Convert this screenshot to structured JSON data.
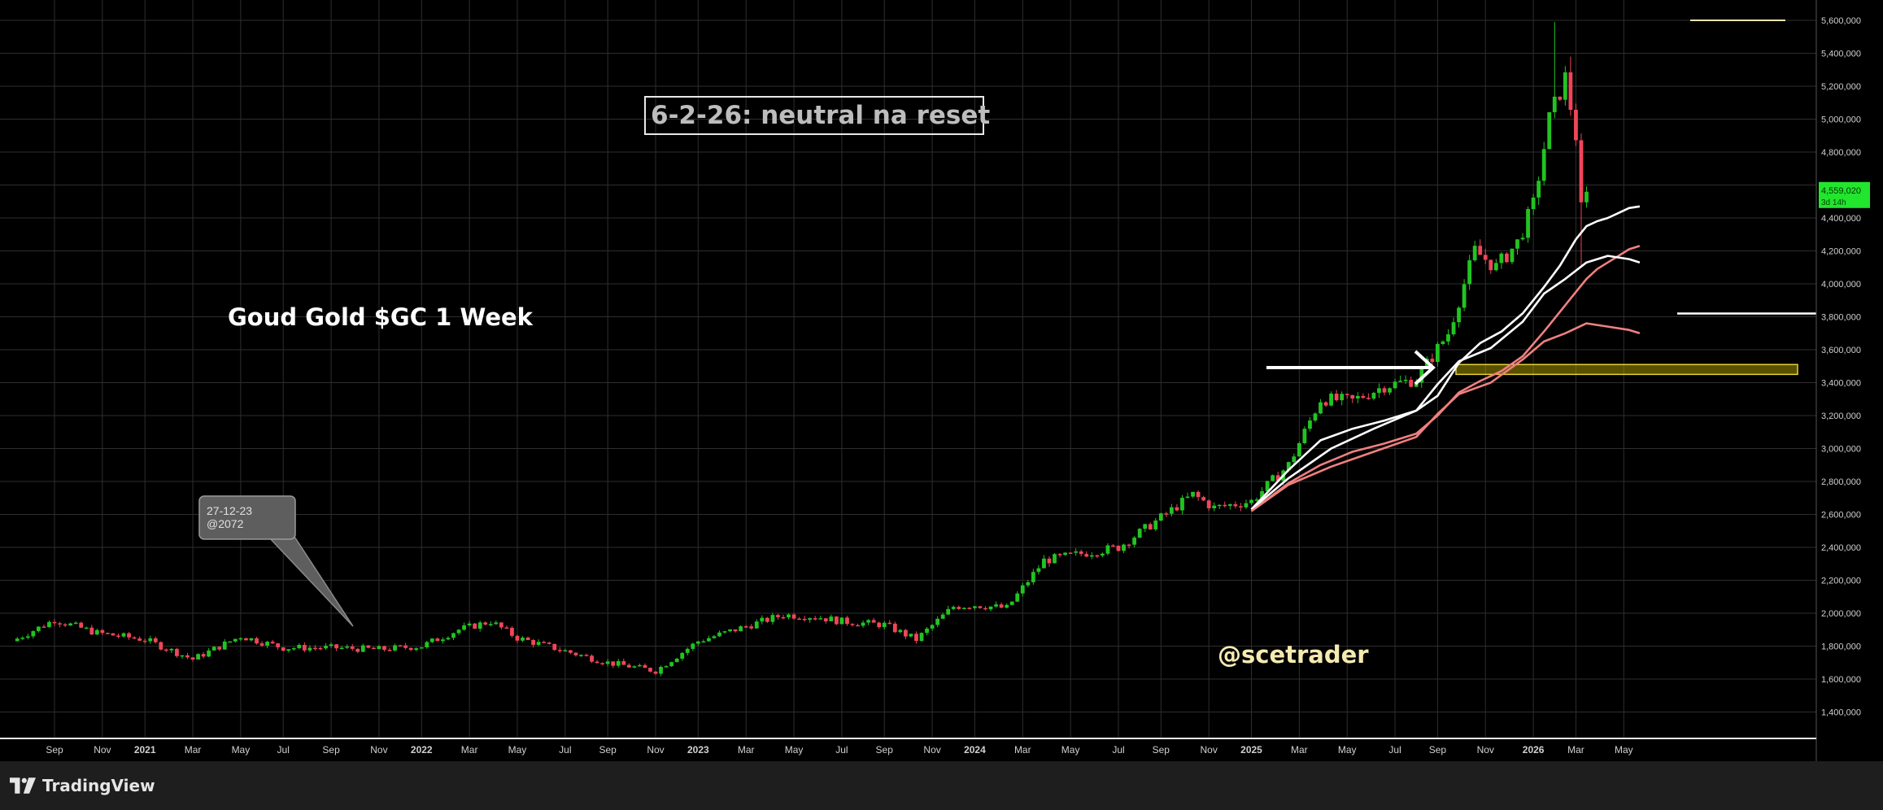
{
  "app": {
    "brand": "TradingView"
  },
  "colors": {
    "background": "#000000",
    "grid": "#2e2e2e",
    "candle_up": "#22c322",
    "candle_down": "#f0455a",
    "ema_white": "#ffffff",
    "ema_red": "#f08080",
    "support_zone": "#c8b400",
    "price_label": "#22e52e",
    "watermark": "#f5eab0"
  },
  "annotations": {
    "box_title": "6-2-26: neutral na reset",
    "chart_caption": "Goud Gold $GC 1 Week",
    "watermark": "@scetrader",
    "callout_line1": "27-12-23",
    "callout_line2": "@2072"
  },
  "price_label": {
    "value": "4,559,020",
    "countdown": "3d 14h"
  },
  "chart_data": {
    "type": "candlestick",
    "title": "Goud Gold $GC 1 Week",
    "xlabel": "",
    "ylabel": "",
    "ylim": [
      1200000,
      5700000
    ],
    "y_ticks": [
      "5,600,000",
      "5,400,000",
      "5,200,000",
      "5,000,000",
      "4,800,000",
      "4,600,000",
      "4,400,000",
      "4,200,000",
      "4,000,000",
      "3,800,000",
      "3,600,000",
      "3,400,000",
      "3,200,000",
      "3,000,000",
      "2,800,000",
      "2,600,000",
      "2,400,000",
      "2,200,000",
      "2,000,000",
      "1,800,000",
      "1,600,000",
      "1,400,000"
    ],
    "y_tick_values": [
      5600000,
      5400000,
      5200000,
      5000000,
      4800000,
      4600000,
      4400000,
      4200000,
      4000000,
      3800000,
      3600000,
      3400000,
      3200000,
      3000000,
      2800000,
      2600000,
      2400000,
      2200000,
      2000000,
      1800000,
      1600000,
      1400000
    ],
    "x_ticks": [
      "Sep",
      "Nov",
      "2021",
      "Mar",
      "May",
      "Jul",
      "Sep",
      "Nov",
      "2022",
      "Mar",
      "May",
      "Jul",
      "Sep",
      "Nov",
      "2023",
      "Mar",
      "May",
      "Jul",
      "Sep",
      "Nov",
      "2024",
      "Mar",
      "May",
      "Jul",
      "Sep",
      "Nov",
      "2025",
      "Mar",
      "May",
      "Jul",
      "Sep",
      "Nov",
      "2026",
      "Mar",
      "May"
    ],
    "x_tick_weeks": [
      0,
      9,
      17,
      26,
      35,
      43,
      52,
      61,
      69,
      78,
      87,
      96,
      104,
      113,
      121,
      130,
      139,
      148,
      156,
      165,
      173,
      182,
      191,
      200,
      208,
      217,
      225,
      234,
      243,
      252,
      260,
      269,
      278,
      286,
      295
    ],
    "x_tick_bold": [
      "2021",
      "2022",
      "2023",
      "2024",
      "2025",
      "2026"
    ],
    "anchors": [
      {
        "week": -8,
        "close": 1830000
      },
      {
        "week": 0,
        "close": 1960000
      },
      {
        "week": 8,
        "close": 1880000
      },
      {
        "week": 17,
        "close": 1840000
      },
      {
        "week": 26,
        "close": 1720000
      },
      {
        "week": 35,
        "close": 1860000
      },
      {
        "week": 43,
        "close": 1790000
      },
      {
        "week": 52,
        "close": 1790000
      },
      {
        "week": 61,
        "close": 1780000
      },
      {
        "week": 69,
        "close": 1800000
      },
      {
        "week": 76,
        "close": 1900000
      },
      {
        "week": 82,
        "close": 1950000
      },
      {
        "week": 87,
        "close": 1850000
      },
      {
        "week": 96,
        "close": 1770000
      },
      {
        "week": 104,
        "close": 1700000
      },
      {
        "week": 113,
        "close": 1650000
      },
      {
        "week": 121,
        "close": 1830000
      },
      {
        "week": 130,
        "close": 1920000
      },
      {
        "week": 137,
        "close": 1990000
      },
      {
        "week": 143,
        "close": 1980000
      },
      {
        "week": 148,
        "close": 1950000
      },
      {
        "week": 156,
        "close": 1930000
      },
      {
        "week": 162,
        "close": 1840000
      },
      {
        "week": 169,
        "close": 2040000
      },
      {
        "week": 173,
        "close": 2050000
      },
      {
        "week": 179,
        "close": 2030000
      },
      {
        "week": 186,
        "close": 2320000
      },
      {
        "week": 191,
        "close": 2350000
      },
      {
        "week": 200,
        "close": 2400000
      },
      {
        "week": 208,
        "close": 2580000
      },
      {
        "week": 214,
        "close": 2720000
      },
      {
        "week": 218,
        "close": 2640000
      },
      {
        "week": 225,
        "close": 2680000
      },
      {
        "week": 232,
        "close": 2900000
      },
      {
        "week": 238,
        "close": 3300000
      },
      {
        "week": 244,
        "close": 3290000
      },
      {
        "week": 250,
        "close": 3380000
      },
      {
        "week": 256,
        "close": 3420000
      },
      {
        "week": 262,
        "close": 3700000
      },
      {
        "week": 267,
        "close": 4200000
      },
      {
        "week": 271,
        "close": 4100000
      },
      {
        "week": 275,
        "close": 4250000
      },
      {
        "week": 278,
        "close": 4480000
      },
      {
        "week": 281,
        "close": 5000000
      },
      {
        "week": 284,
        "close": 5250000
      },
      {
        "week": 286,
        "close": 4900000
      },
      {
        "week": 287,
        "close": 4450000
      },
      {
        "week": 288,
        "close": 4559020
      }
    ],
    "spikes": [
      {
        "week": 282,
        "high": 5590000
      },
      {
        "week": 285,
        "high": 5380000
      },
      {
        "week": 287,
        "low": 4100000
      }
    ],
    "moving_averages": [
      {
        "color": "white",
        "points": [
          [
            225,
            2630000
          ],
          [
            232,
            2870000
          ],
          [
            238,
            3050000
          ],
          [
            244,
            3120000
          ],
          [
            250,
            3170000
          ],
          [
            256,
            3230000
          ],
          [
            260,
            3320000
          ],
          [
            264,
            3520000
          ],
          [
            268,
            3640000
          ],
          [
            272,
            3710000
          ],
          [
            276,
            3820000
          ],
          [
            280,
            3980000
          ],
          [
            283,
            4110000
          ],
          [
            286,
            4270000
          ],
          [
            288,
            4350000
          ],
          [
            290,
            4380000
          ],
          [
            292,
            4400000
          ],
          [
            294,
            4430000
          ],
          [
            296,
            4460000
          ],
          [
            298,
            4470000
          ]
        ]
      },
      {
        "color": "red",
        "points": [
          [
            225,
            2620000
          ],
          [
            232,
            2790000
          ],
          [
            238,
            2900000
          ],
          [
            244,
            2980000
          ],
          [
            250,
            3030000
          ],
          [
            256,
            3090000
          ],
          [
            260,
            3200000
          ],
          [
            264,
            3340000
          ],
          [
            268,
            3410000
          ],
          [
            272,
            3470000
          ],
          [
            276,
            3560000
          ],
          [
            280,
            3710000
          ],
          [
            283,
            3830000
          ],
          [
            286,
            3950000
          ],
          [
            288,
            4030000
          ],
          [
            290,
            4090000
          ],
          [
            292,
            4130000
          ],
          [
            294,
            4170000
          ],
          [
            296,
            4210000
          ],
          [
            298,
            4230000
          ]
        ]
      },
      {
        "color": "white",
        "points": [
          [
            225,
            2630000
          ],
          [
            232,
            2820000
          ],
          [
            240,
            3000000
          ],
          [
            248,
            3120000
          ],
          [
            256,
            3230000
          ],
          [
            260,
            3390000
          ],
          [
            264,
            3530000
          ],
          [
            270,
            3610000
          ],
          [
            276,
            3770000
          ],
          [
            280,
            3940000
          ],
          [
            284,
            4030000
          ],
          [
            288,
            4130000
          ],
          [
            292,
            4170000
          ],
          [
            296,
            4150000
          ],
          [
            298,
            4130000
          ]
        ]
      },
      {
        "color": "red",
        "points": [
          [
            225,
            2620000
          ],
          [
            232,
            2780000
          ],
          [
            240,
            2890000
          ],
          [
            248,
            2980000
          ],
          [
            256,
            3070000
          ],
          [
            260,
            3210000
          ],
          [
            264,
            3330000
          ],
          [
            270,
            3400000
          ],
          [
            276,
            3540000
          ],
          [
            280,
            3650000
          ],
          [
            284,
            3700000
          ],
          [
            288,
            3760000
          ],
          [
            292,
            3740000
          ],
          [
            296,
            3720000
          ],
          [
            298,
            3700000
          ]
        ]
      }
    ],
    "support_zone": {
      "from": 3450000,
      "to": 3510000
    },
    "horizontal_lines": [
      {
        "price": 5600000,
        "color": "#f5e3b0"
      },
      {
        "price": 3820000,
        "color": "#ffffff"
      }
    ],
    "last_price": 4559020
  }
}
